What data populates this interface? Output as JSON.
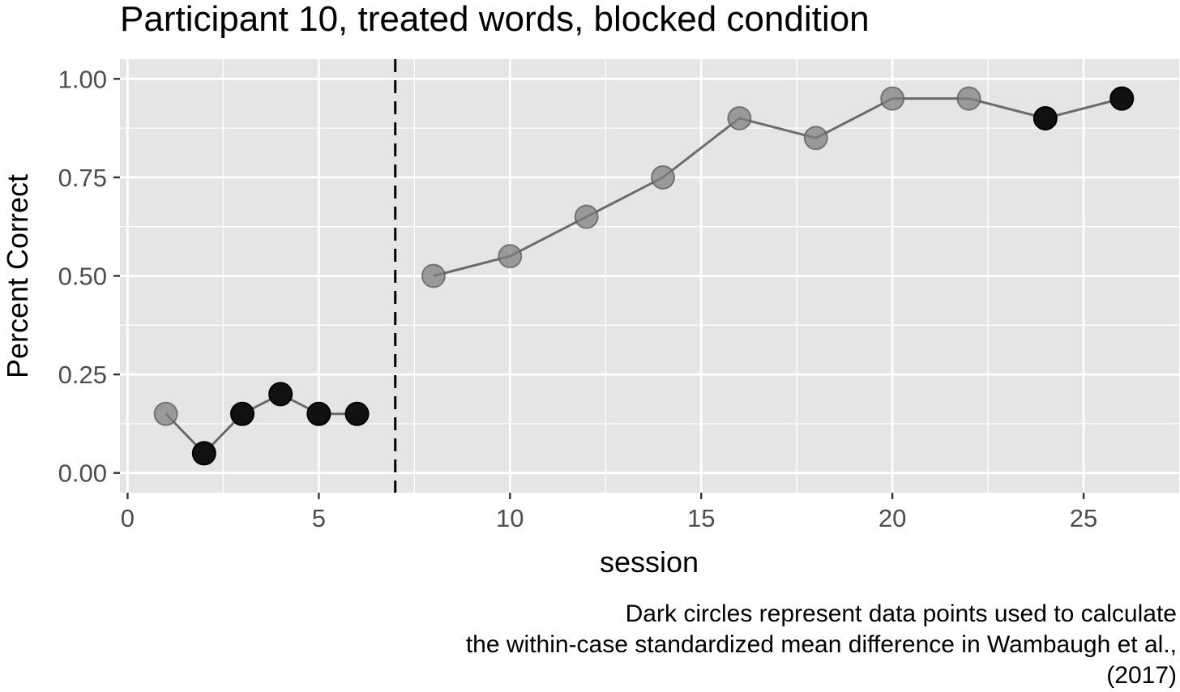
{
  "chart_data": {
    "type": "line",
    "title": "Participant 10, treated words, blocked condition",
    "xlabel": "session",
    "ylabel": "Percent Correct",
    "xlim": [
      -0.2,
      27.5
    ],
    "ylim": [
      -0.05,
      1.05
    ],
    "x_ticks": [
      0,
      5,
      10,
      15,
      20,
      25
    ],
    "x_tick_labels": [
      "0",
      "5",
      "10",
      "15",
      "20",
      "25"
    ],
    "x_minor_ticks": [
      2.5,
      7.5,
      12.5,
      17.5,
      22.5
    ],
    "y_ticks": [
      0,
      0.25,
      0.5,
      0.75,
      1.0
    ],
    "y_tick_labels": [
      "0.00",
      "0.25",
      "0.50",
      "0.75",
      "1.00"
    ],
    "y_minor_ticks": [
      0.125,
      0.375,
      0.625,
      0.875
    ],
    "phase_change_x": 7,
    "grid": true,
    "legend": "none",
    "colors": {
      "panel_bg": "#e5e5e5",
      "grid": "#ffffff",
      "line": "#6b6b6b",
      "dark_point": "#111111",
      "light_point": "#7f7f7f",
      "axis_text": "#4d4d4d"
    },
    "series": [
      {
        "points": [
          {
            "x": 1,
            "y": 0.15,
            "used": false
          },
          {
            "x": 2,
            "y": 0.05,
            "used": true
          },
          {
            "x": 3,
            "y": 0.15,
            "used": true
          },
          {
            "x": 4,
            "y": 0.2,
            "used": true
          },
          {
            "x": 5,
            "y": 0.15,
            "used": true
          },
          {
            "x": 6,
            "y": 0.15,
            "used": true
          }
        ]
      },
      {
        "points": [
          {
            "x": 8,
            "y": 0.5,
            "used": false
          },
          {
            "x": 10,
            "y": 0.55,
            "used": false
          },
          {
            "x": 12,
            "y": 0.65,
            "used": false
          },
          {
            "x": 14,
            "y": 0.75,
            "used": false
          },
          {
            "x": 16,
            "y": 0.9,
            "used": false
          },
          {
            "x": 18,
            "y": 0.85,
            "used": false
          },
          {
            "x": 20,
            "y": 0.95,
            "used": false
          },
          {
            "x": 22,
            "y": 0.95,
            "used": false
          },
          {
            "x": 24,
            "y": 0.9,
            "used": true
          },
          {
            "x": 26,
            "y": 0.95,
            "used": true
          }
        ]
      }
    ],
    "caption_lines": [
      "Dark circles represent data points used to calculate",
      "the within-case standardized mean difference in Wambaugh et al.,",
      "(2017)"
    ]
  }
}
